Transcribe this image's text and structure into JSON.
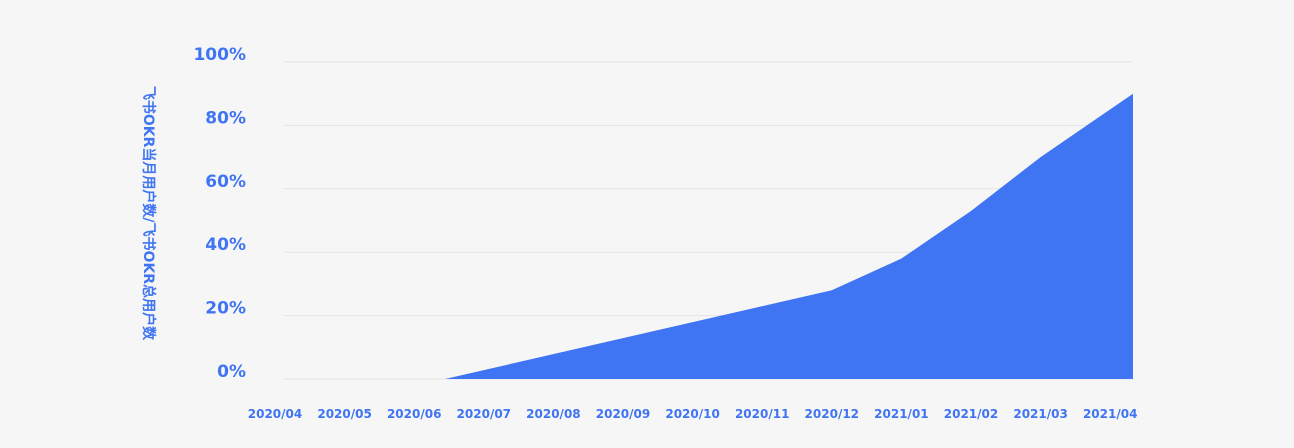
{
  "chart_data": {
    "type": "area",
    "ylabel": "飞书OKR当月用户数/飞书OKR总用户数",
    "xlabel": "",
    "categories": [
      "2020/04",
      "2020/05",
      "2020/06",
      "2020/07",
      "2020/08",
      "2020/09",
      "2020/10",
      "2020/11",
      "2020/12",
      "2021/01",
      "2021/02",
      "2021/03",
      "2021/04"
    ],
    "x": [
      "2020/04",
      "2020/05",
      "2020/06",
      "2020/06.5",
      "2020/12",
      "2021/01",
      "2021/02",
      "2021/03",
      "2021/04"
    ],
    "values": [
      0,
      0,
      0,
      0,
      28,
      38,
      53,
      70,
      90
    ],
    "yticks": [
      "0%",
      "20%",
      "40%",
      "60%",
      "80%",
      "100%"
    ],
    "ylim": [
      0,
      100
    ],
    "grid": true,
    "colors": {
      "fill": "#3f74f3",
      "text": "#3f74f3",
      "grid": "#e4e4e4",
      "background": "#f6f6f6"
    }
  }
}
